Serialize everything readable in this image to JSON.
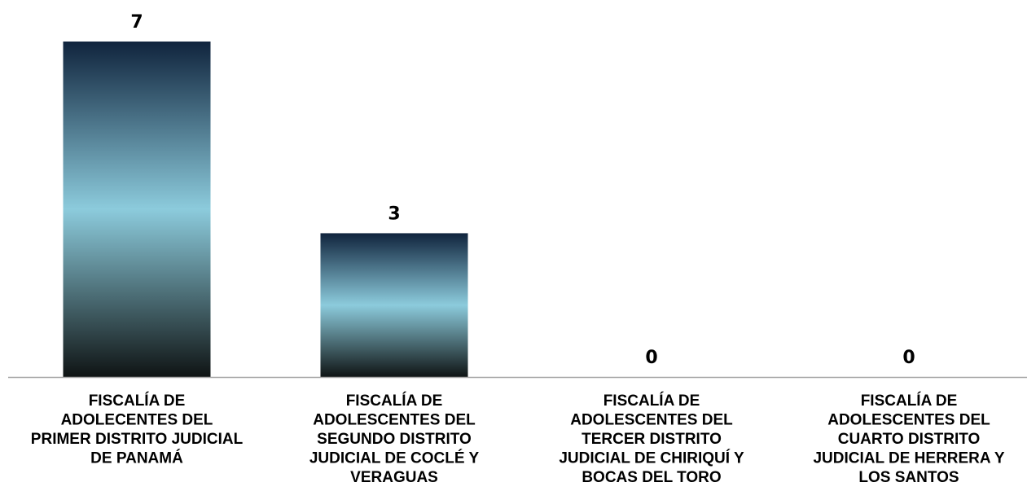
{
  "chart_data": {
    "type": "bar",
    "categories": [
      "FISCALÍA DE ADOLECENTES DEL PRIMER DISTRITO JUDICIAL DE PANAMÁ",
      "FISCALÍA DE ADOLESCENTES DEL SEGUNDO DISTRITO JUDICIAL DE COCLÉ Y VERAGUAS",
      "FISCALÍA DE ADOLESCENTES DEL TERCER DISTRITO JUDICIAL DE CHIRIQUÍ Y BOCAS DEL TORO",
      "FISCALÍA DE ADOLESCENTES DEL CUARTO DISTRITO JUDICIAL DE HERRERA Y LOS SANTOS"
    ],
    "category_lines": [
      [
        "FISCALÍA DE",
        "ADOLECENTES DEL",
        "PRIMER DISTRITO JUDICIAL",
        "DE PANAMÁ"
      ],
      [
        "FISCALÍA DE",
        "ADOLESCENTES DEL",
        "SEGUNDO DISTRITO",
        "JUDICIAL DE COCLÉ Y",
        "VERAGUAS"
      ],
      [
        "FISCALÍA DE",
        "ADOLESCENTES DEL",
        "TERCER DISTRITO",
        "JUDICIAL DE CHIRIQUÍ Y",
        "BOCAS DEL TORO"
      ],
      [
        "FISCALÍA DE",
        "ADOLESCENTES DEL",
        "CUARTO DISTRITO",
        "JUDICIAL DE HERRERA Y",
        "LOS SANTOS"
      ]
    ],
    "values": [
      7,
      3,
      0,
      0
    ],
    "value_labels": [
      "7",
      "3",
      "0",
      "0"
    ],
    "title": "",
    "xlabel": "",
    "ylabel": "",
    "ylim": [
      0,
      7
    ],
    "grid": false,
    "legend": "none",
    "bar_gradient": [
      "#10243d",
      "#8ccbdc",
      "#0f1414"
    ],
    "axis_color": "#a6a6a6"
  }
}
